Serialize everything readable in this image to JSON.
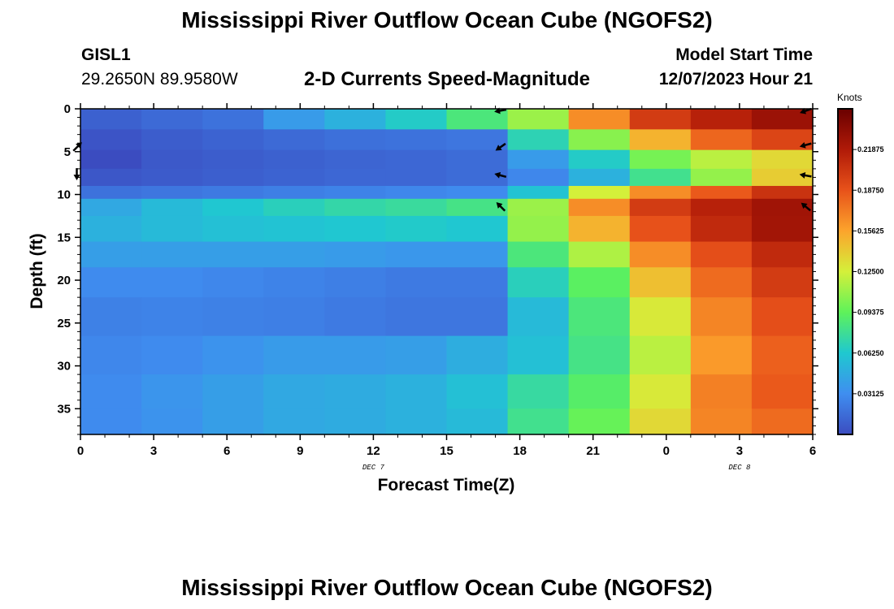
{
  "header": {
    "title": "Mississippi River Outflow Ocean Cube (NGOFS2)",
    "station_id": "GISL1",
    "station_coords": "29.2650N  89.9580W",
    "subtitle": "2-D Currents Speed-Magnitude",
    "model_label": "Model Start Time",
    "model_time": "12/07/2023 Hour 21"
  },
  "footer": {
    "title": "Mississippi River Outflow Ocean Cube (NGOFS2)"
  },
  "chart_data": {
    "type": "heatmap",
    "title": "2-D Currents Speed-Magnitude",
    "xlabel": "Forecast Time(Z)",
    "ylabel": "Depth (ft)",
    "x_ticks": [
      "0",
      "3",
      "6",
      "9",
      "12",
      "15",
      "18",
      "21",
      "0",
      "3",
      "6"
    ],
    "date_labels": [
      {
        "text": "DEC 7",
        "at_tick": 4
      },
      {
        "text": "DEC 8",
        "at_tick": 9
      }
    ],
    "y_ticks": [
      0,
      5,
      10,
      15,
      20,
      25,
      30,
      35
    ],
    "ylim": [
      0,
      38
    ],
    "time_columns": 12,
    "depth_rows": [
      {
        "top": 0,
        "bottom": 2.4
      },
      {
        "top": 2.4,
        "bottom": 4.8
      },
      {
        "top": 4.8,
        "bottom": 7.0
      },
      {
        "top": 7.0,
        "bottom": 9.0
      },
      {
        "top": 9.0,
        "bottom": 10.5
      },
      {
        "top": 10.5,
        "bottom": 12.5
      },
      {
        "top": 12.5,
        "bottom": 15.5
      },
      {
        "top": 15.5,
        "bottom": 18.5
      },
      {
        "top": 18.5,
        "bottom": 22.0
      },
      {
        "top": 22.0,
        "bottom": 26.5
      },
      {
        "top": 26.5,
        "bottom": 31.0
      },
      {
        "top": 31.0,
        "bottom": 35.0
      },
      {
        "top": 35.0,
        "bottom": 38.0
      }
    ],
    "values_knots": [
      [
        0.01,
        0.014,
        0.018,
        0.038,
        0.05,
        0.065,
        0.085,
        0.11,
        0.165,
        0.2,
        0.215,
        0.228
      ],
      [
        0.004,
        0.008,
        0.011,
        0.014,
        0.017,
        0.018,
        0.02,
        0.07,
        0.105,
        0.15,
        0.18,
        0.195
      ],
      [
        0.0,
        0.006,
        0.008,
        0.01,
        0.012,
        0.013,
        0.015,
        0.038,
        0.065,
        0.1,
        0.118,
        0.135
      ],
      [
        0.005,
        0.007,
        0.009,
        0.011,
        0.013,
        0.013,
        0.015,
        0.028,
        0.05,
        0.08,
        0.108,
        0.14
      ],
      [
        0.018,
        0.02,
        0.022,
        0.024,
        0.026,
        0.028,
        0.03,
        0.06,
        0.125,
        0.165,
        0.185,
        0.205
      ],
      [
        0.045,
        0.055,
        0.062,
        0.068,
        0.073,
        0.076,
        0.082,
        0.11,
        0.165,
        0.2,
        0.215,
        0.226
      ],
      [
        0.05,
        0.055,
        0.058,
        0.06,
        0.062,
        0.064,
        0.062,
        0.108,
        0.15,
        0.188,
        0.21,
        0.225
      ],
      [
        0.04,
        0.04,
        0.04,
        0.04,
        0.038,
        0.036,
        0.036,
        0.085,
        0.115,
        0.165,
        0.19,
        0.21
      ],
      [
        0.03,
        0.03,
        0.028,
        0.026,
        0.024,
        0.022,
        0.022,
        0.068,
        0.092,
        0.145,
        0.178,
        0.2
      ],
      [
        0.025,
        0.026,
        0.025,
        0.024,
        0.022,
        0.02,
        0.02,
        0.055,
        0.085,
        0.128,
        0.168,
        0.19
      ],
      [
        0.028,
        0.03,
        0.034,
        0.038,
        0.038,
        0.04,
        0.048,
        0.058,
        0.082,
        0.118,
        0.16,
        0.182
      ],
      [
        0.03,
        0.035,
        0.04,
        0.045,
        0.047,
        0.05,
        0.058,
        0.075,
        0.09,
        0.128,
        0.17,
        0.185
      ],
      [
        0.03,
        0.034,
        0.04,
        0.045,
        0.047,
        0.05,
        0.055,
        0.08,
        0.096,
        0.135,
        0.168,
        0.178
      ]
    ],
    "colorbar": {
      "unit": "Knots",
      "range": [
        0,
        0.25
      ],
      "tick_values": [
        0.03125,
        0.0625,
        0.09375,
        0.125,
        0.15625,
        0.1875,
        0.21875
      ],
      "tick_labels": [
        "0.03125",
        "0.06250",
        "0.09375",
        "0.12500",
        "0.15625",
        "0.18750",
        "0.21875"
      ],
      "stops": [
        "#3b4cc0",
        "#3f8ef0",
        "#1fc8d0",
        "#5ef25a",
        "#d4f03a",
        "#fca42c",
        "#e8521a",
        "#b01a08",
        "#6a0000"
      ]
    },
    "vectors": [
      {
        "time_col": 0,
        "depth": 4.5,
        "angle": 45
      },
      {
        "time_col": 0,
        "depth": 7.5,
        "angle": -90
      },
      {
        "time_col": 6,
        "depth": 0.2,
        "angle": 190
      },
      {
        "time_col": 6,
        "depth": 4.4,
        "angle": 215
      },
      {
        "time_col": 6,
        "depth": 7.8,
        "angle": 165
      },
      {
        "time_col": 6,
        "depth": 11.5,
        "angle": 135
      },
      {
        "time_col": 11,
        "depth": 0.2,
        "angle": 200
      },
      {
        "time_col": 11,
        "depth": 4.2,
        "angle": 195
      },
      {
        "time_col": 11,
        "depth": 7.8,
        "angle": 170
      },
      {
        "time_col": 11,
        "depth": 11.5,
        "angle": 140
      }
    ]
  }
}
